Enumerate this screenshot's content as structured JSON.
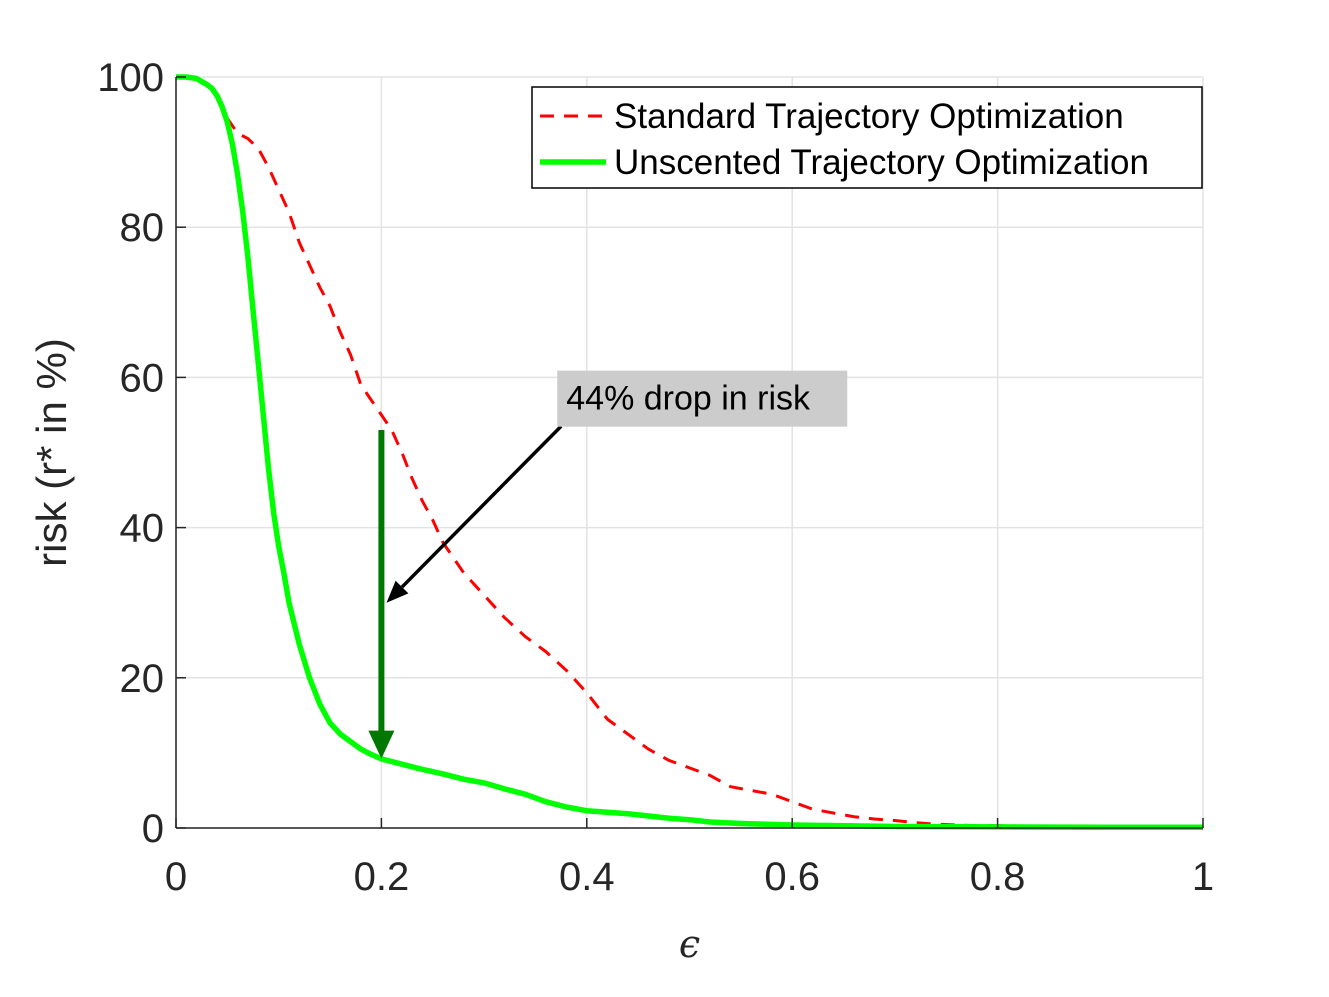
{
  "chart_data": {
    "type": "line",
    "title": "",
    "xlabel": "ϵ",
    "ylabel": "risk (r* in %)",
    "xlim": [
      0,
      1
    ],
    "ylim": [
      0,
      100
    ],
    "xticks": [
      0,
      0.2,
      0.4,
      0.6,
      0.8,
      1
    ],
    "xtick_labels": [
      "0",
      "0.2",
      "0.4",
      "0.6",
      "0.8",
      "1"
    ],
    "yticks": [
      0,
      20,
      40,
      60,
      80,
      100
    ],
    "ytick_labels": [
      "0",
      "20",
      "40",
      "60",
      "80",
      "100"
    ],
    "grid": true,
    "legend_position": "top-right",
    "colors": {
      "standard": "#ff0000",
      "unscented": "#00ff00",
      "annotation_arrow": "#007700",
      "annotation_box": "#cccccc"
    },
    "series": [
      {
        "name": "Standard Trajectory Optimization",
        "style": "dashed",
        "x": [
          0,
          0.01,
          0.02,
          0.03,
          0.04,
          0.05,
          0.06,
          0.07,
          0.08,
          0.09,
          0.1,
          0.11,
          0.12,
          0.13,
          0.14,
          0.15,
          0.16,
          0.17,
          0.18,
          0.19,
          0.2,
          0.21,
          0.22,
          0.23,
          0.24,
          0.25,
          0.26,
          0.27,
          0.28,
          0.29,
          0.3,
          0.32,
          0.34,
          0.36,
          0.38,
          0.4,
          0.42,
          0.44,
          0.46,
          0.48,
          0.5,
          0.52,
          0.54,
          0.56,
          0.58,
          0.6,
          0.62,
          0.64,
          0.66,
          0.68,
          0.7,
          0.72,
          0.74,
          0.76,
          0.78,
          0.8,
          0.85,
          0.9,
          0.95,
          1.0
        ],
        "values": [
          100,
          100,
          99.8,
          99.2,
          97.5,
          94.5,
          92.5,
          91.8,
          90.5,
          88,
          85,
          82,
          78,
          75,
          72,
          69.5,
          66,
          63,
          59,
          57,
          55,
          53,
          50,
          46.5,
          43.5,
          41,
          38,
          36,
          34,
          32.5,
          31,
          28,
          25.5,
          23.5,
          21,
          18,
          14.5,
          12.5,
          10.5,
          9,
          8,
          7,
          5.5,
          5,
          4.5,
          3.5,
          2.5,
          2,
          1.5,
          1.2,
          1,
          0.7,
          0.5,
          0.4,
          0.3,
          0.3,
          0.2,
          0.1,
          0.1,
          0.1
        ]
      },
      {
        "name": "Unscented Trajectory Optimization",
        "style": "solid",
        "x": [
          0,
          0.01,
          0.02,
          0.03,
          0.035,
          0.04,
          0.045,
          0.05,
          0.055,
          0.06,
          0.065,
          0.07,
          0.075,
          0.08,
          0.085,
          0.09,
          0.095,
          0.1,
          0.105,
          0.11,
          0.12,
          0.13,
          0.14,
          0.15,
          0.16,
          0.17,
          0.18,
          0.19,
          0.2,
          0.22,
          0.24,
          0.26,
          0.28,
          0.3,
          0.32,
          0.34,
          0.36,
          0.38,
          0.4,
          0.42,
          0.44,
          0.46,
          0.48,
          0.5,
          0.52,
          0.55,
          0.6,
          0.65,
          0.7,
          0.8,
          0.9,
          1.0
        ],
        "values": [
          100,
          100,
          99.8,
          99,
          98.5,
          97.5,
          96,
          94,
          91,
          87,
          82,
          76,
          69,
          62,
          55,
          48,
          42,
          37.5,
          34,
          30,
          24.5,
          20,
          16.5,
          14,
          12.5,
          11.5,
          10.5,
          9.8,
          9.2,
          8.5,
          7.8,
          7.2,
          6.5,
          6,
          5.2,
          4.5,
          3.5,
          2.8,
          2.3,
          2.1,
          1.9,
          1.6,
          1.3,
          1.1,
          0.8,
          0.6,
          0.4,
          0.3,
          0.2,
          0.15,
          0.1,
          0.1
        ]
      }
    ],
    "annotations": [
      {
        "type": "drop_arrow",
        "x": 0.2,
        "y_from": 53,
        "y_to": 9.5
      },
      {
        "type": "text_arrow",
        "text": "44% drop in risk",
        "text_x": 0.38,
        "text_y": 57.3,
        "arrow_tail": [
          0.375,
          53.5
        ],
        "arrow_head": [
          0.205,
          30
        ]
      }
    ]
  }
}
